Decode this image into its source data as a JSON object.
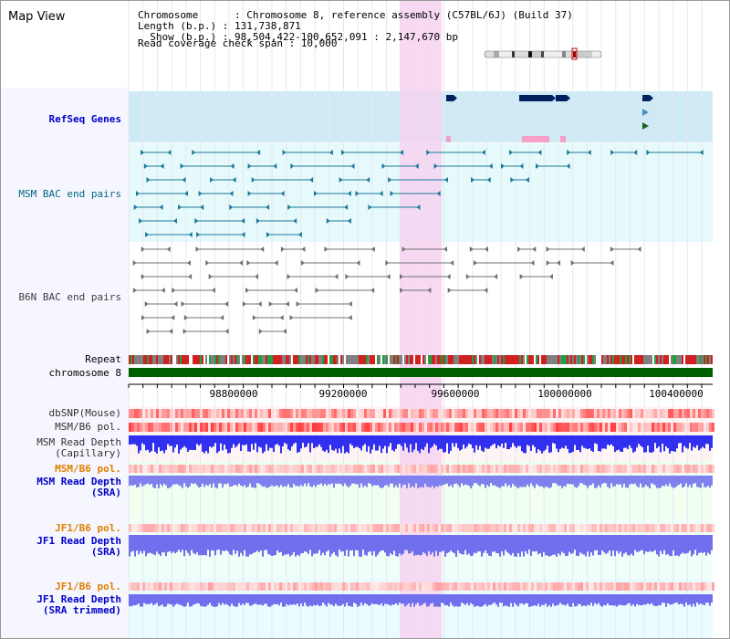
{
  "title": "Map View",
  "info": {
    "chromosome": "Chromosome      : Chromosome 8, reference assembly (C57BL/6J) (Build 37)",
    "length": "Length (b.p.) : 131,738,871",
    "show": "  Show (b.p.) : 98,504,422-100,652,091 : 2,147,670 bp",
    "coverage": "Read coverage check span : 10,000"
  },
  "tracks": {
    "refseq": "RefSeq Genes",
    "msm_bac": "MSM BAC end pairs",
    "b6n_bac": "B6N BAC end pairs",
    "repeat": "Repeat",
    "chromosome": "chromosome 8",
    "dbsnp": "dbSNP(Mouse)",
    "msm_b6_pol": "MSM/B6 pol.",
    "msm_read_cap": "MSM Read Depth\n(Capillary)",
    "msm_b6_pol2": "MSM/B6 pol.",
    "msm_read_sra": "MSM Read Depth\n(SRA)",
    "jf1_b6_pol": "JF1/B6 pol.",
    "jf1_read_sra": "JF1 Read Depth\n(SRA)",
    "jf1_b6_pol2": "JF1/B6 pol.",
    "jf1_read_trim": "JF1 Read Depth\n(SRA trimmed)"
  },
  "axis": {
    "ticks": [
      "98800000",
      "99200000",
      "99600000",
      "100000000",
      "100400000"
    ]
  },
  "colors": {
    "highlight": "#f6d4f0",
    "refseq_bg": "#cfeaf5",
    "bac_bg": "#e6f9fb",
    "gene": "#002060",
    "chromosome": "#006000",
    "depth_blue": "#3030ee",
    "depth_light": "#7070ee"
  }
}
